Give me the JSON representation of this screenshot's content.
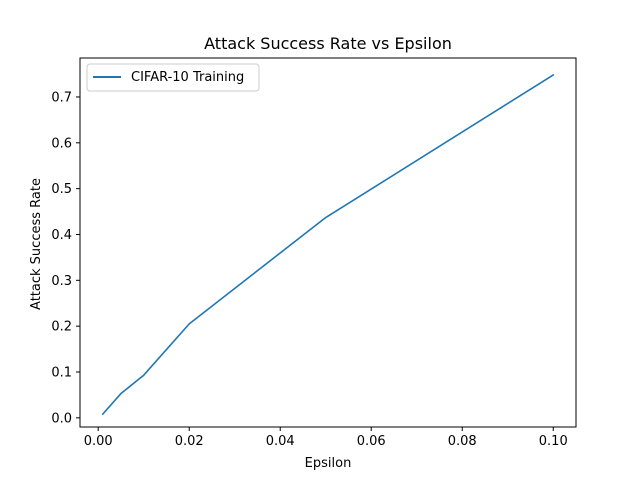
{
  "chart_data": {
    "type": "line",
    "title": "Attack Success Rate vs Epsilon",
    "xlabel": "Epsilon",
    "ylabel": "Attack Success Rate",
    "xlim": [
      -0.004,
      0.105
    ],
    "ylim": [
      -0.02,
      0.785
    ],
    "xticks": [
      0.0,
      0.02,
      0.04,
      0.06,
      0.08,
      0.1
    ],
    "xtick_labels": [
      "0.00",
      "0.02",
      "0.04",
      "0.06",
      "0.08",
      "0.10"
    ],
    "yticks": [
      0.0,
      0.1,
      0.2,
      0.3,
      0.4,
      0.5,
      0.6,
      0.7
    ],
    "ytick_labels": [
      "0.0",
      "0.1",
      "0.2",
      "0.3",
      "0.4",
      "0.5",
      "0.6",
      "0.7"
    ],
    "grid": false,
    "legend_position": "top-left",
    "series": [
      {
        "name": "CIFAR-10 Training",
        "color": "#1f77b4",
        "x": [
          0.001,
          0.005,
          0.01,
          0.02,
          0.05,
          0.1
        ],
        "y": [
          0.008,
          0.053,
          0.093,
          0.205,
          0.437,
          0.748
        ]
      }
    ]
  }
}
